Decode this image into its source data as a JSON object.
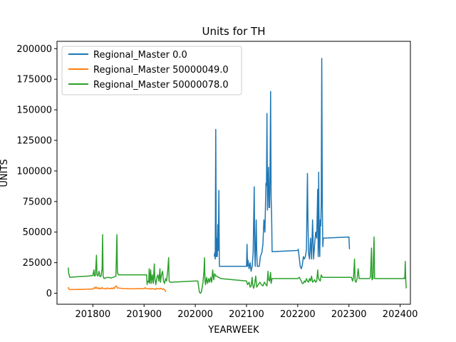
{
  "chart_data": {
    "type": "line",
    "title": "Units for TH",
    "xlabel": "YEARWEEK",
    "ylabel": "UNITS",
    "xlim": [
      201730,
      202420
    ],
    "ylim": [
      -9000,
      206000
    ],
    "xticks": [
      201800,
      201900,
      202000,
      202100,
      202200,
      202300,
      202400
    ],
    "yticks": [
      0,
      25000,
      50000,
      75000,
      100000,
      125000,
      150000,
      175000,
      200000
    ],
    "grid": false,
    "legend_position": "top-left",
    "series": [
      {
        "name": "Regional_Master 0.0",
        "color": "#1f77b4",
        "points": [
          [
            202037,
            30000
          ],
          [
            202038,
            33000
          ],
          [
            202039,
            28000
          ],
          [
            202040,
            134000
          ],
          [
            202041,
            30000
          ],
          [
            202042,
            45000
          ],
          [
            202043,
            30000
          ],
          [
            202044,
            56000
          ],
          [
            202045,
            35000
          ],
          [
            202046,
            84000
          ],
          [
            202047,
            22000
          ],
          [
            202100,
            22000
          ],
          [
            202101,
            40000
          ],
          [
            202102,
            22000
          ],
          [
            202103,
            27000
          ],
          [
            202105,
            20000
          ],
          [
            202107,
            25000
          ],
          [
            202109,
            18000
          ],
          [
            202111,
            22000
          ],
          [
            202113,
            33000
          ],
          [
            202115,
            87000
          ],
          [
            202116,
            35000
          ],
          [
            202117,
            22000
          ],
          [
            202118,
            40000
          ],
          [
            202119,
            60000
          ],
          [
            202120,
            35000
          ],
          [
            202121,
            22000
          ],
          [
            202125,
            22000
          ],
          [
            202127,
            30000
          ],
          [
            202130,
            33000
          ],
          [
            202132,
            40000
          ],
          [
            202134,
            60000
          ],
          [
            202136,
            50000
          ],
          [
            202138,
            90000
          ],
          [
            202139,
            88000
          ],
          [
            202140,
            147000
          ],
          [
            202141,
            68000
          ],
          [
            202142,
            90000
          ],
          [
            202143,
            103000
          ],
          [
            202144,
            70000
          ],
          [
            202145,
            70000
          ],
          [
            202146,
            95000
          ],
          [
            202147,
            165000
          ],
          [
            202148,
            78000
          ],
          [
            202149,
            65000
          ],
          [
            202150,
            34000
          ],
          [
            202200,
            35000
          ],
          [
            202201,
            36000
          ],
          [
            202205,
            22000
          ],
          [
            202207,
            20000
          ],
          [
            202209,
            23000
          ],
          [
            202211,
            30000
          ],
          [
            202213,
            28000
          ],
          [
            202215,
            30000
          ],
          [
            202217,
            36000
          ],
          [
            202219,
            98000
          ],
          [
            202220,
            60000
          ],
          [
            202221,
            33000
          ],
          [
            202223,
            28000
          ],
          [
            202225,
            45000
          ],
          [
            202227,
            28000
          ],
          [
            202229,
            60000
          ],
          [
            202231,
            28000
          ],
          [
            202233,
            40000
          ],
          [
            202235,
            50000
          ],
          [
            202237,
            45000
          ],
          [
            202239,
            85000
          ],
          [
            202240,
            30000
          ],
          [
            202241,
            99000
          ],
          [
            202242,
            40000
          ],
          [
            202243,
            30000
          ],
          [
            202244,
            60000
          ],
          [
            202245,
            55000
          ],
          [
            202246,
            75000
          ],
          [
            202247,
            192000
          ],
          [
            202248,
            70000
          ],
          [
            202249,
            38000
          ],
          [
            202250,
            45000
          ],
          [
            202300,
            46000
          ],
          [
            202301,
            36000
          ]
        ]
      },
      {
        "name": "Regional_Master 50000049.0",
        "color": "#ff7f0e",
        "points": [
          [
            201752,
            5000
          ],
          [
            201753,
            3500
          ],
          [
            201755,
            3000
          ],
          [
            201760,
            3000
          ],
          [
            201770,
            3200
          ],
          [
            201780,
            3200
          ],
          [
            201790,
            3300
          ],
          [
            201800,
            3400
          ],
          [
            201802,
            4500
          ],
          [
            201804,
            3800
          ],
          [
            201806,
            5200
          ],
          [
            201808,
            3800
          ],
          [
            201810,
            4500
          ],
          [
            201812,
            3500
          ],
          [
            201814,
            4200
          ],
          [
            201816,
            3600
          ],
          [
            201818,
            4700
          ],
          [
            201820,
            3900
          ],
          [
            201822,
            3600
          ],
          [
            201824,
            3800
          ],
          [
            201826,
            3400
          ],
          [
            201828,
            4400
          ],
          [
            201830,
            3800
          ],
          [
            201832,
            4000
          ],
          [
            201834,
            3500
          ],
          [
            201836,
            4300
          ],
          [
            201838,
            3600
          ],
          [
            201840,
            4600
          ],
          [
            201842,
            3800
          ],
          [
            201844,
            5500
          ],
          [
            201846,
            6000
          ],
          [
            201848,
            4200
          ],
          [
            201850,
            4200
          ],
          [
            201860,
            3800
          ],
          [
            201870,
            3700
          ],
          [
            201880,
            3600
          ],
          [
            201890,
            3800
          ],
          [
            201900,
            3700
          ],
          [
            201902,
            4500
          ],
          [
            201904,
            3800
          ],
          [
            201906,
            4000
          ],
          [
            201908,
            3600
          ],
          [
            201910,
            3500
          ],
          [
            201912,
            4000
          ],
          [
            201914,
            3300
          ],
          [
            201916,
            3900
          ],
          [
            201918,
            3600
          ],
          [
            201920,
            3500
          ],
          [
            201922,
            3000
          ],
          [
            201924,
            4000
          ],
          [
            201926,
            3600
          ],
          [
            201928,
            3800
          ],
          [
            201930,
            3400
          ],
          [
            201932,
            4100
          ],
          [
            201934,
            3500
          ],
          [
            201936,
            3200
          ],
          [
            201938,
            3700
          ],
          [
            201940,
            3000
          ],
          [
            201942,
            1500
          ],
          [
            201943,
            2000
          ]
        ]
      },
      {
        "name": "Regional_Master 50000078.0",
        "color": "#2ca02c",
        "points": [
          [
            201752,
            21000
          ],
          [
            201753,
            16000
          ],
          [
            201755,
            13000
          ],
          [
            201770,
            13500
          ],
          [
            201790,
            14000
          ],
          [
            201800,
            14500
          ],
          [
            201802,
            19000
          ],
          [
            201803,
            14000
          ],
          [
            201805,
            14500
          ],
          [
            201807,
            31000
          ],
          [
            201808,
            15000
          ],
          [
            201810,
            14000
          ],
          [
            201812,
            18000
          ],
          [
            201814,
            13500
          ],
          [
            201816,
            14000
          ],
          [
            201818,
            20000
          ],
          [
            201819,
            48000
          ],
          [
            201820,
            14000
          ],
          [
            201822,
            12000
          ],
          [
            201824,
            12500
          ],
          [
            201830,
            13000
          ],
          [
            201835,
            12500
          ],
          [
            201840,
            13000
          ],
          [
            201845,
            14000
          ],
          [
            201847,
            48000
          ],
          [
            201848,
            17000
          ],
          [
            201850,
            15000
          ],
          [
            201900,
            15000
          ],
          [
            201905,
            15000
          ],
          [
            201906,
            7000
          ],
          [
            201907,
            10000
          ],
          [
            201909,
            9000
          ],
          [
            201910,
            20000
          ],
          [
            201911,
            8000
          ],
          [
            201913,
            19000
          ],
          [
            201914,
            8000
          ],
          [
            201916,
            15000
          ],
          [
            201918,
            8000
          ],
          [
            201920,
            24000
          ],
          [
            201921,
            12000
          ],
          [
            201923,
            7000
          ],
          [
            201925,
            13000
          ],
          [
            201927,
            15000
          ],
          [
            201929,
            10000
          ],
          [
            201931,
            20000
          ],
          [
            201932,
            9000
          ],
          [
            201934,
            15000
          ],
          [
            201936,
            18000
          ],
          [
            201938,
            10000
          ],
          [
            201940,
            8000
          ],
          [
            201942,
            12000
          ],
          [
            201944,
            10000
          ],
          [
            201946,
            18000
          ],
          [
            201948,
            29000
          ],
          [
            201949,
            10000
          ],
          [
            201951,
            9000
          ],
          [
            202000,
            10000
          ],
          [
            202005,
            10000
          ],
          [
            202008,
            1000
          ],
          [
            202010,
            0
          ],
          [
            202012,
            1000
          ],
          [
            202015,
            9000
          ],
          [
            202017,
            18000
          ],
          [
            202018,
            29000
          ],
          [
            202019,
            10000
          ],
          [
            202020,
            7000
          ],
          [
            202022,
            13000
          ],
          [
            202024,
            8000
          ],
          [
            202026,
            12000
          ],
          [
            202028,
            9000
          ],
          [
            202030,
            13000
          ],
          [
            202032,
            9000
          ],
          [
            202034,
            19000
          ],
          [
            202036,
            11000
          ],
          [
            202038,
            16000
          ],
          [
            202040,
            14000
          ],
          [
            202042,
            14000
          ],
          [
            202045,
            13000
          ],
          [
            202050,
            12000
          ],
          [
            202100,
            10000
          ],
          [
            202102,
            7000
          ],
          [
            202105,
            9000
          ],
          [
            202107,
            5000
          ],
          [
            202109,
            6000
          ],
          [
            202111,
            13000
          ],
          [
            202112,
            7000
          ],
          [
            202114,
            4000
          ],
          [
            202116,
            8000
          ],
          [
            202118,
            14000
          ],
          [
            202120,
            5000
          ],
          [
            202123,
            7000
          ],
          [
            202126,
            9000
          ],
          [
            202129,
            7000
          ],
          [
            202132,
            6000
          ],
          [
            202135,
            9000
          ],
          [
            202138,
            7000
          ],
          [
            202140,
            6000
          ],
          [
            202142,
            18000
          ],
          [
            202143,
            11000
          ],
          [
            202145,
            10000
          ],
          [
            202147,
            17000
          ],
          [
            202148,
            8000
          ],
          [
            202150,
            12000
          ],
          [
            202200,
            12000
          ],
          [
            202203,
            13000
          ],
          [
            202207,
            10000
          ],
          [
            202209,
            8000
          ],
          [
            202211,
            8000
          ],
          [
            202213,
            10000
          ],
          [
            202215,
            9000
          ],
          [
            202217,
            12000
          ],
          [
            202219,
            10000
          ],
          [
            202221,
            9000
          ],
          [
            202223,
            12000
          ],
          [
            202225,
            10000
          ],
          [
            202227,
            14000
          ],
          [
            202229,
            9000
          ],
          [
            202231,
            10000
          ],
          [
            202233,
            11000
          ],
          [
            202235,
            9000
          ],
          [
            202237,
            10000
          ],
          [
            202239,
            19000
          ],
          [
            202240,
            13000
          ],
          [
            202242,
            11000
          ],
          [
            202244,
            10000
          ],
          [
            202246,
            15000
          ],
          [
            202248,
            13000
          ],
          [
            202250,
            13000
          ],
          [
            202300,
            13000
          ],
          [
            202305,
            13000
          ],
          [
            202307,
            10000
          ],
          [
            202309,
            13000
          ],
          [
            202311,
            28000
          ],
          [
            202312,
            10000
          ],
          [
            202314,
            9000
          ],
          [
            202316,
            12000
          ],
          [
            202318,
            20000
          ],
          [
            202320,
            12000
          ],
          [
            202325,
            12000
          ],
          [
            202330,
            12000
          ],
          [
            202335,
            12000
          ],
          [
            202340,
            12000
          ],
          [
            202342,
            13000
          ],
          [
            202344,
            37000
          ],
          [
            202345,
            11000
          ],
          [
            202347,
            12000
          ],
          [
            202348,
            30000
          ],
          [
            202349,
            46000
          ],
          [
            202350,
            12000
          ],
          [
            202400,
            12000
          ],
          [
            202405,
            12000
          ],
          [
            202408,
            12500
          ],
          [
            202409,
            12000
          ],
          [
            202410,
            26000
          ],
          [
            202411,
            10000
          ],
          [
            202412,
            4000
          ]
        ]
      }
    ]
  }
}
